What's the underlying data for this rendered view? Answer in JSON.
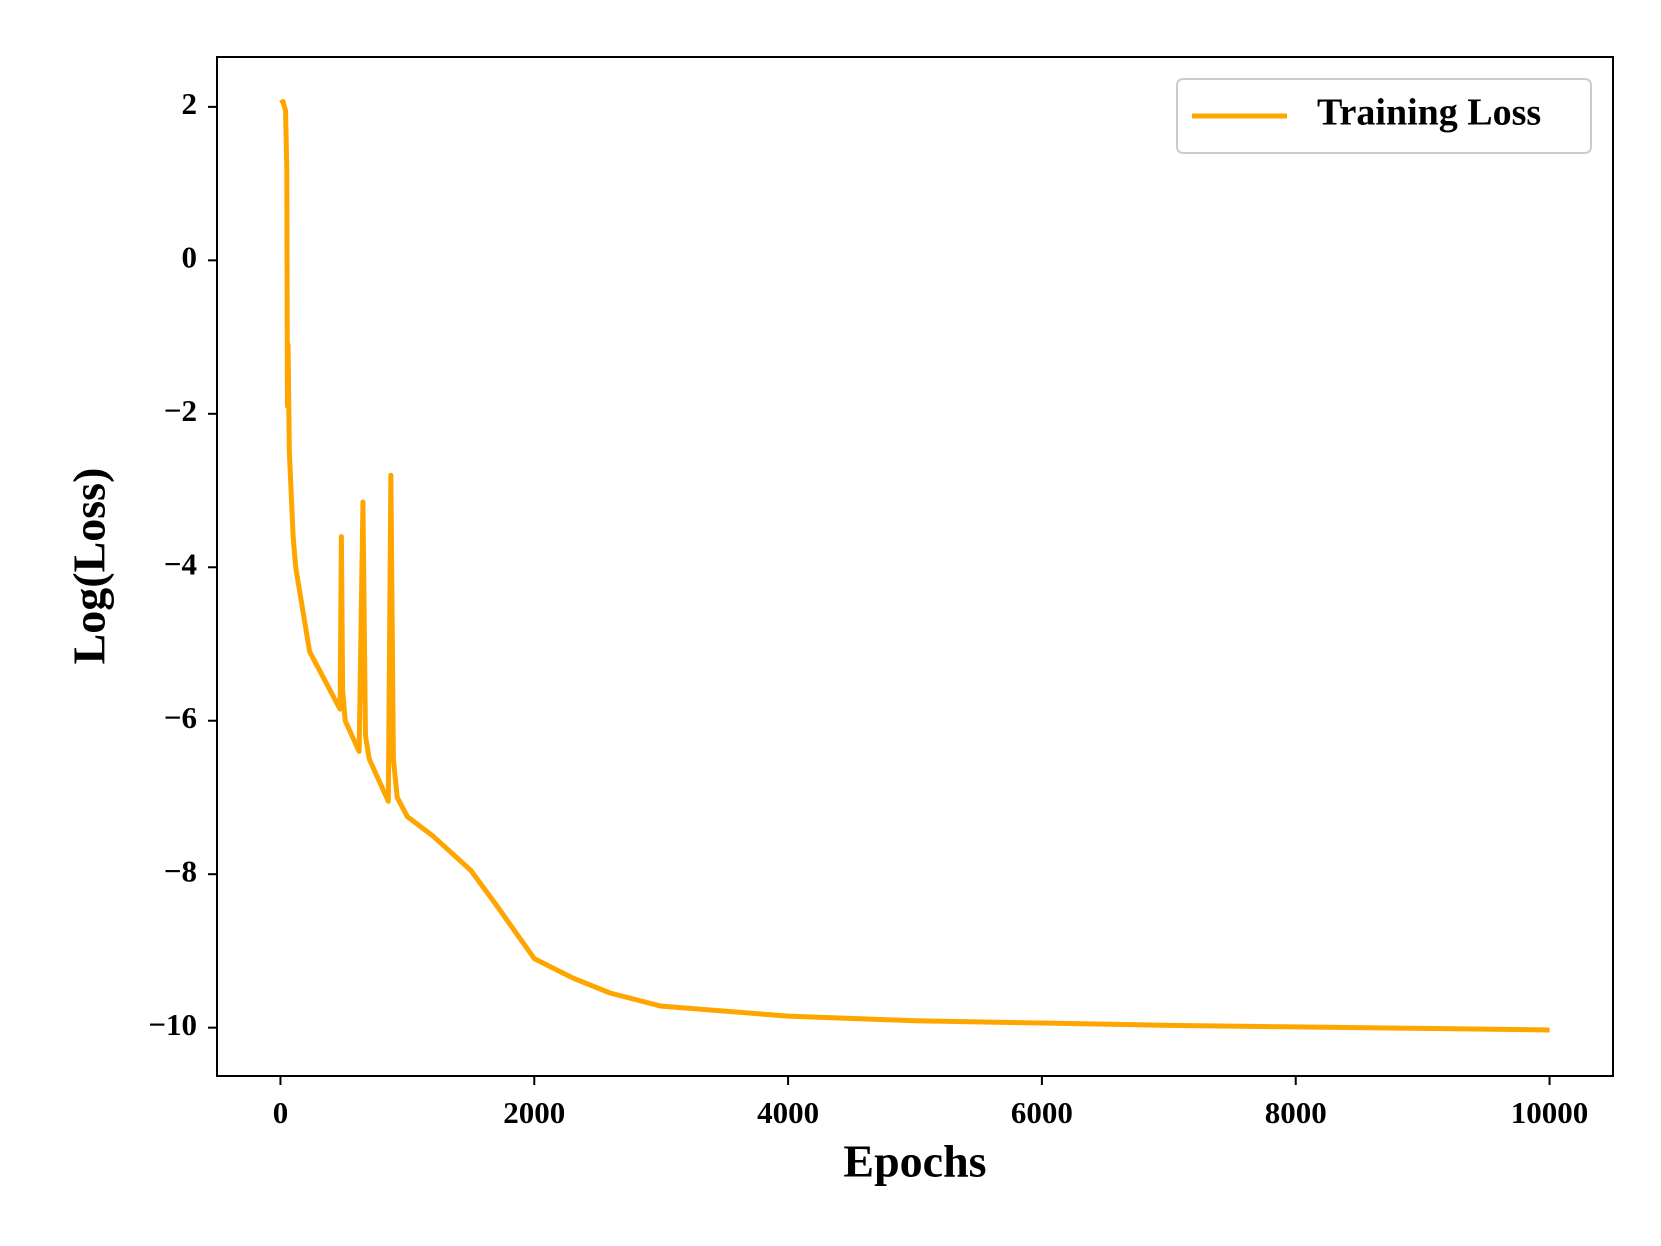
{
  "chart_data": {
    "type": "line",
    "xlabel": "Epochs",
    "ylabel": "Log(Loss)",
    "series": [
      {
        "name": "Training Loss",
        "color": "#ffa500",
        "x": [
          0,
          20,
          40,
          50,
          55,
          60,
          70,
          100,
          120,
          230,
          470,
          480,
          490,
          510,
          620,
          650,
          670,
          700,
          850,
          870,
          890,
          920,
          1000,
          1200,
          1500,
          1700,
          2000,
          2300,
          2600,
          3000,
          4000,
          5000,
          6000,
          7000,
          8000,
          9000,
          10000
        ],
        "values": [
          2.05,
          2.07,
          1.95,
          1.2,
          -1.9,
          -1.1,
          -2.5,
          -3.6,
          -4.0,
          -5.1,
          -5.85,
          -3.6,
          -5.6,
          -6.0,
          -6.4,
          -3.15,
          -6.2,
          -6.5,
          -7.05,
          -2.8,
          -6.5,
          -7.0,
          -7.25,
          -7.5,
          -7.95,
          -8.4,
          -9.1,
          -9.35,
          -9.55,
          -9.72,
          -9.85,
          -9.91,
          -9.94,
          -9.97,
          -9.99,
          -10.01,
          -10.03
        ]
      }
    ],
    "xlim": [
      -500,
      10500
    ],
    "ylim": [
      -10.63,
      2.65
    ],
    "xticks": [
      0,
      2000,
      4000,
      6000,
      8000,
      10000
    ],
    "yticks": [
      {
        "value": -10,
        "label": "−10"
      },
      {
        "value": -8,
        "label": "−8"
      },
      {
        "value": -6,
        "label": "−6"
      },
      {
        "value": -4,
        "label": "−4"
      },
      {
        "value": -2,
        "label": "−2"
      },
      0,
      2
    ],
    "legend": "upper right",
    "grid": false
  }
}
